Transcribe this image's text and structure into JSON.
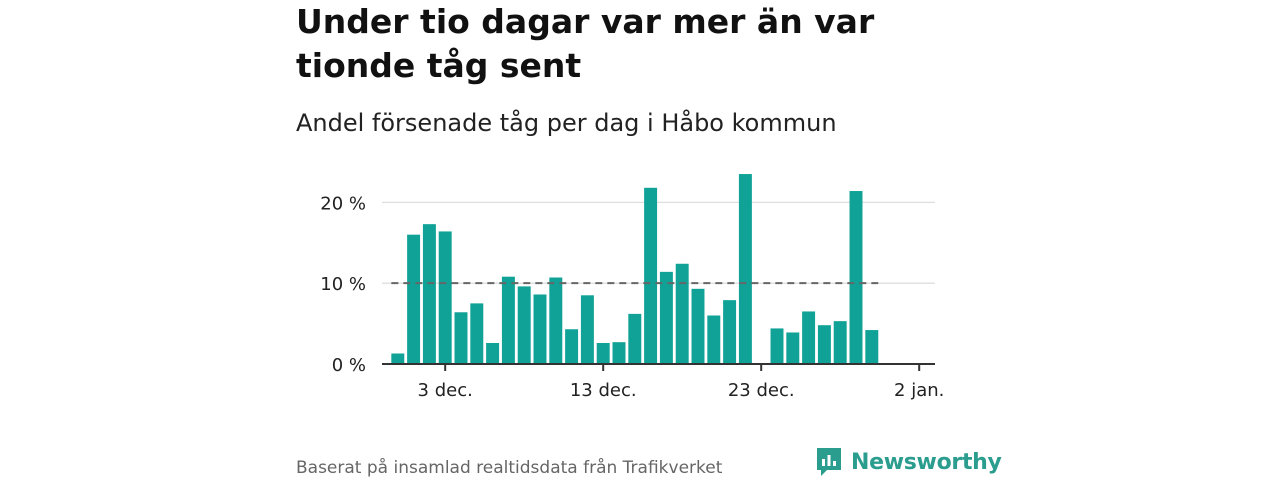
{
  "title": "Under tio dagar var mer än var tionde tåg sent",
  "subtitle": "Andel försenade tåg per dag i Håbo kommun",
  "source": "Baserat på insamlad realtidsdata från Trafikverket",
  "brand": {
    "name": "Newsworthy",
    "icon": "newsworthy-logo-icon"
  },
  "colors": {
    "bar": "#10a297",
    "reference_line": "#666666",
    "grid": "#d9d9d9",
    "axis": "#333333"
  },
  "chart_data": {
    "type": "bar",
    "x_axis": {
      "type": "date",
      "range": [
        "2024-11-29",
        "2025-01-03"
      ],
      "ticks": [
        {
          "date": "2024-12-03",
          "label": "3 dec."
        },
        {
          "date": "2024-12-13",
          "label": "13 dec."
        },
        {
          "date": "2024-12-23",
          "label": "23 dec."
        },
        {
          "date": "2025-01-02",
          "label": "2 jan."
        }
      ]
    },
    "y_axis": {
      "ylim": [
        0,
        24
      ],
      "ticks": [
        {
          "value": 0,
          "label": "0 %"
        },
        {
          "value": 10,
          "label": "10 %"
        },
        {
          "value": 20,
          "label": "20 %"
        }
      ],
      "grid": true
    },
    "reference_line": {
      "value": 10,
      "style": "dashed"
    },
    "data": [
      {
        "date": "2024-11-30",
        "value": 1.3
      },
      {
        "date": "2024-12-01",
        "value": 16.0
      },
      {
        "date": "2024-12-02",
        "value": 17.3
      },
      {
        "date": "2024-12-03",
        "value": 16.4
      },
      {
        "date": "2024-12-04",
        "value": 6.4
      },
      {
        "date": "2024-12-05",
        "value": 7.5
      },
      {
        "date": "2024-12-06",
        "value": 2.6
      },
      {
        "date": "2024-12-07",
        "value": 10.8
      },
      {
        "date": "2024-12-08",
        "value": 9.6
      },
      {
        "date": "2024-12-09",
        "value": 8.6
      },
      {
        "date": "2024-12-10",
        "value": 10.7
      },
      {
        "date": "2024-12-11",
        "value": 4.3
      },
      {
        "date": "2024-12-12",
        "value": 8.5
      },
      {
        "date": "2024-12-13",
        "value": 2.6
      },
      {
        "date": "2024-12-14",
        "value": 2.7
      },
      {
        "date": "2024-12-15",
        "value": 6.2
      },
      {
        "date": "2024-12-16",
        "value": 21.8
      },
      {
        "date": "2024-12-17",
        "value": 11.4
      },
      {
        "date": "2024-12-18",
        "value": 12.4
      },
      {
        "date": "2024-12-19",
        "value": 9.3
      },
      {
        "date": "2024-12-20",
        "value": 6.0
      },
      {
        "date": "2024-12-21",
        "value": 7.9
      },
      {
        "date": "2024-12-22",
        "value": 23.5
      },
      {
        "date": "2024-12-24",
        "value": 4.4
      },
      {
        "date": "2024-12-25",
        "value": 3.9
      },
      {
        "date": "2024-12-26",
        "value": 6.5
      },
      {
        "date": "2024-12-27",
        "value": 4.8
      },
      {
        "date": "2024-12-28",
        "value": 5.3
      },
      {
        "date": "2024-12-29",
        "value": 21.4
      },
      {
        "date": "2024-12-30",
        "value": 4.2
      }
    ]
  }
}
